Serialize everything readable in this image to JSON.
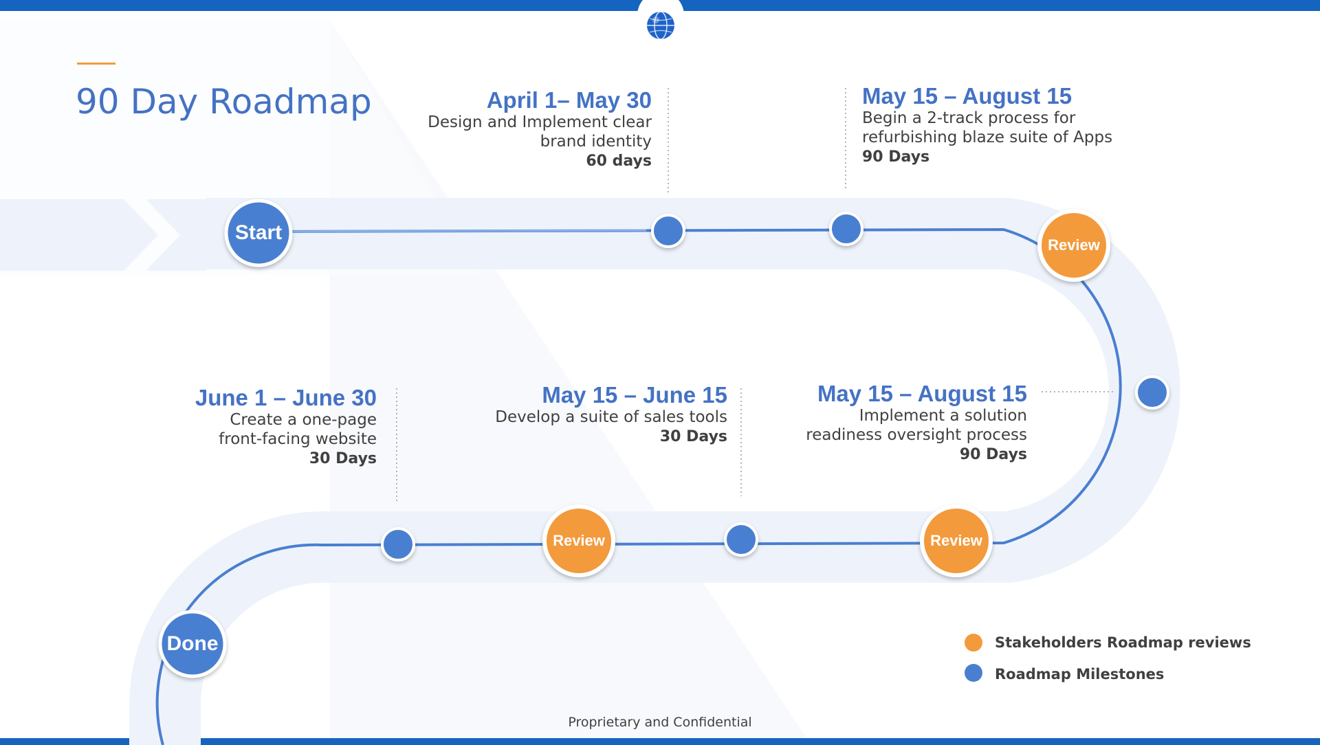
{
  "slide": {
    "title": "90 Day Roadmap",
    "footer": "Proprietary and Confidential",
    "colors": {
      "top_bar": "#1565C0",
      "title": "#4472C4",
      "accent_line": "#F39A3C",
      "path_band": "#EEF3FB",
      "path_line": "#4A7FD0",
      "milestone": "#4A7FD0",
      "review": "#F39A3C"
    },
    "logo_icon": "globe-icon"
  },
  "path_nodes": {
    "start": "Start",
    "done": "Done",
    "review_1": "Review",
    "review_2": "Review",
    "review_3": "Review"
  },
  "milestones": [
    {
      "date": "April 1– May 30",
      "desc": [
        "Design and Implement clear",
        "brand identity"
      ],
      "duration": "60 days"
    },
    {
      "date": "May 15 – August 15",
      "desc": [
        "Begin a 2-track process for",
        "refurbishing blaze suite of Apps"
      ],
      "duration": "90 Days"
    },
    {
      "date": "May 15 – August 15",
      "desc": [
        "Implement a solution",
        "readiness oversight process"
      ],
      "duration": "90 Days"
    },
    {
      "date": "May 15 – June 15",
      "desc": [
        "Develop a suite of sales tools"
      ],
      "duration": "30 Days"
    },
    {
      "date": "June 1 – June 30",
      "desc": [
        "Create a one-page",
        "front-facing website"
      ],
      "duration": "30 Days"
    }
  ],
  "legend": {
    "reviews": "Stakeholders Roadmap reviews",
    "milestones": "Roadmap Milestones"
  }
}
